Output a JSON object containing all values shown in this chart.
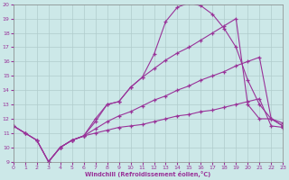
{
  "xlabel": "Windchill (Refroidissement éolien,°C)",
  "background_color": "#cce8e8",
  "grid_color": "#b0cccc",
  "line_color": "#993399",
  "xmin": 0,
  "xmax": 23,
  "ymin": 9,
  "ymax": 20,
  "line1_x": [
    0,
    1,
    2,
    3,
    4,
    5,
    6,
    7,
    8,
    9,
    10,
    11,
    12,
    13,
    14,
    15,
    16,
    17,
    18,
    19,
    20,
    21,
    22,
    23
  ],
  "line1_y": [
    11.5,
    11.0,
    10.5,
    9.0,
    10.0,
    10.5,
    10.8,
    11.0,
    11.2,
    11.4,
    11.5,
    11.6,
    11.8,
    12.0,
    12.2,
    12.3,
    12.5,
    12.6,
    12.8,
    13.0,
    13.2,
    13.4,
    11.5,
    11.4
  ],
  "line2_x": [
    0,
    1,
    2,
    3,
    4,
    5,
    6,
    7,
    8,
    9,
    10,
    11,
    12,
    13,
    14,
    15,
    16,
    17,
    18,
    19,
    20,
    21,
    22,
    23
  ],
  "line2_y": [
    11.5,
    11.0,
    10.5,
    9.0,
    10.0,
    10.5,
    10.8,
    11.3,
    11.8,
    12.2,
    12.5,
    12.9,
    13.3,
    13.6,
    14.0,
    14.3,
    14.7,
    15.0,
    15.3,
    15.7,
    16.0,
    16.3,
    12.0,
    11.7
  ],
  "line3_x": [
    0,
    1,
    2,
    3,
    4,
    5,
    6,
    7,
    8,
    9,
    10,
    11,
    12,
    13,
    14,
    15,
    16,
    17,
    18,
    19,
    20,
    21,
    22,
    23
  ],
  "line3_y": [
    11.5,
    11.0,
    10.5,
    9.0,
    10.0,
    10.5,
    10.8,
    11.8,
    13.0,
    13.2,
    14.2,
    14.9,
    15.5,
    16.1,
    16.6,
    17.0,
    17.5,
    18.0,
    18.5,
    19.0,
    13.0,
    12.0,
    12.0,
    11.5
  ],
  "line4_x": [
    3,
    4,
    5,
    6,
    7,
    8,
    9,
    10,
    11,
    12,
    13,
    14,
    15,
    16,
    17,
    18,
    19,
    20,
    21,
    22,
    23
  ],
  "line4_y": [
    9.0,
    10.0,
    10.5,
    10.8,
    12.0,
    13.0,
    13.2,
    14.2,
    14.9,
    16.5,
    18.8,
    19.8,
    20.1,
    19.9,
    19.3,
    18.3,
    17.0,
    14.7,
    13.0,
    12.0,
    11.5
  ]
}
